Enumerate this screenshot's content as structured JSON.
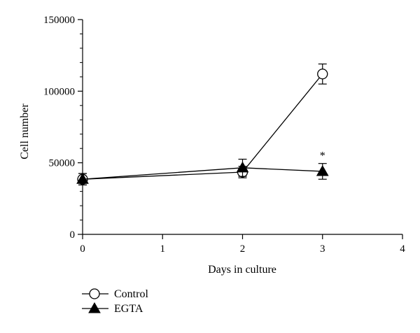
{
  "chart_data": {
    "type": "line",
    "xlabel": "Days in culture",
    "ylabel": "Cell number",
    "xlim": [
      0,
      4
    ],
    "ylim": [
      0,
      150000
    ],
    "x_ticks": [
      0,
      1,
      2,
      3,
      4
    ],
    "y_ticks": [
      0,
      50000,
      100000,
      150000
    ],
    "x_tick_labels": [
      "0",
      "1",
      "2",
      "3",
      "4"
    ],
    "y_tick_labels": [
      "0",
      "50000",
      "100000",
      "150000"
    ],
    "grid": false,
    "legend_placement": "bottom-left",
    "series": [
      {
        "name": "Control",
        "marker": "open-circle",
        "color": "#000000",
        "x": [
          0,
          2,
          3
        ],
        "y": [
          38500,
          43500,
          112000
        ],
        "error": [
          4000,
          4000,
          7000
        ]
      },
      {
        "name": "EGTA",
        "marker": "filled-triangle",
        "color": "#000000",
        "x": [
          0,
          2,
          3
        ],
        "y": [
          38500,
          46500,
          44000
        ],
        "error": [
          4000,
          6000,
          5500
        ]
      }
    ],
    "annotations": [
      {
        "text": "*",
        "x": 3,
        "y": 44000
      }
    ]
  }
}
